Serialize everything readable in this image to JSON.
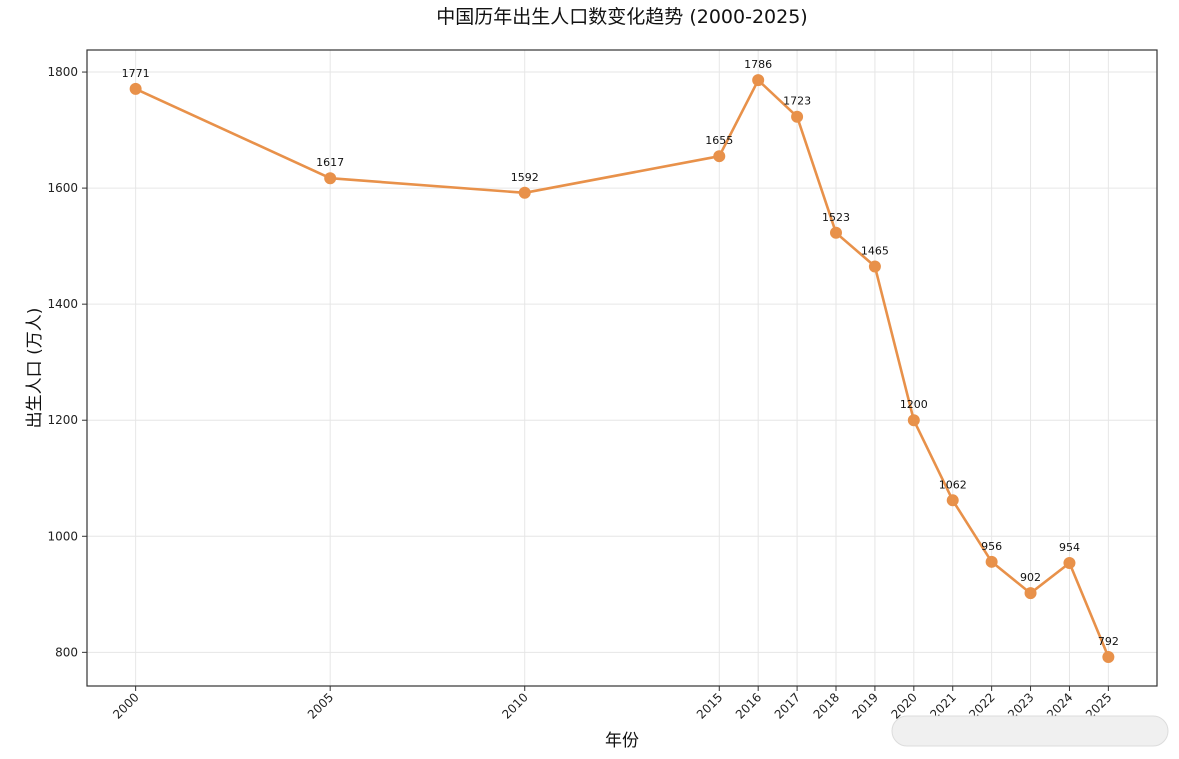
{
  "chart_data": {
    "type": "line",
    "title": "中国历年出生人口数变化趋势 (2000-2025)",
    "xlabel": "年份",
    "ylabel": "出生人口 (万人)",
    "x": [
      2000,
      2005,
      2010,
      2015,
      2016,
      2017,
      2018,
      2019,
      2020,
      2021,
      2022,
      2023,
      2024,
      2025
    ],
    "x_tick_labels": [
      "2000",
      "2005",
      "2010",
      "2015",
      "2016",
      "2017",
      "2018",
      "2019",
      "2020",
      "2021",
      "2022",
      "2023",
      "2024",
      "2025"
    ],
    "series": [
      {
        "values": [
          1771,
          1617,
          1592,
          1655,
          1786,
          1723,
          1523,
          1465,
          1200,
          1062,
          956,
          902,
          954,
          792
        ],
        "color": "#e8914a"
      }
    ],
    "y_ticks": [
      800,
      1000,
      1200,
      1400,
      1600,
      1800
    ],
    "ylim": [
      742,
      1838
    ],
    "grid": true,
    "legend": "none"
  }
}
